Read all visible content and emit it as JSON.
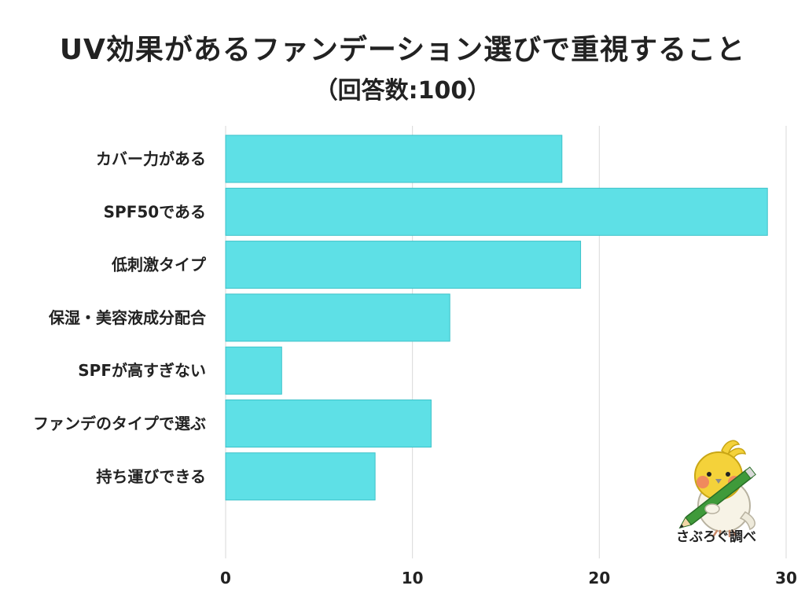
{
  "title": "UV効果があるファンデーション選びで重視すること",
  "subtitle": "（回答数:100）",
  "watermark": "さぶろぐ調べ",
  "colors": {
    "bar": "#5ee0e6",
    "grid": "#d9d9d9",
    "text": "#222222"
  },
  "chart_data": {
    "type": "bar",
    "orientation": "horizontal",
    "categories": [
      "カバー力がある",
      "SPF50である",
      "低刺激タイプ",
      "保湿・美容液成分配合",
      "SPFが高すぎない",
      "ファンデのタイプで選ぶ",
      "持ち運びできる"
    ],
    "values": [
      18,
      29,
      19,
      12,
      3,
      11,
      8
    ],
    "xlim": [
      0,
      30
    ],
    "xticks": [
      0,
      10,
      20,
      30
    ],
    "xlabel": "",
    "ylabel": "",
    "grid": true,
    "legend": "none"
  }
}
